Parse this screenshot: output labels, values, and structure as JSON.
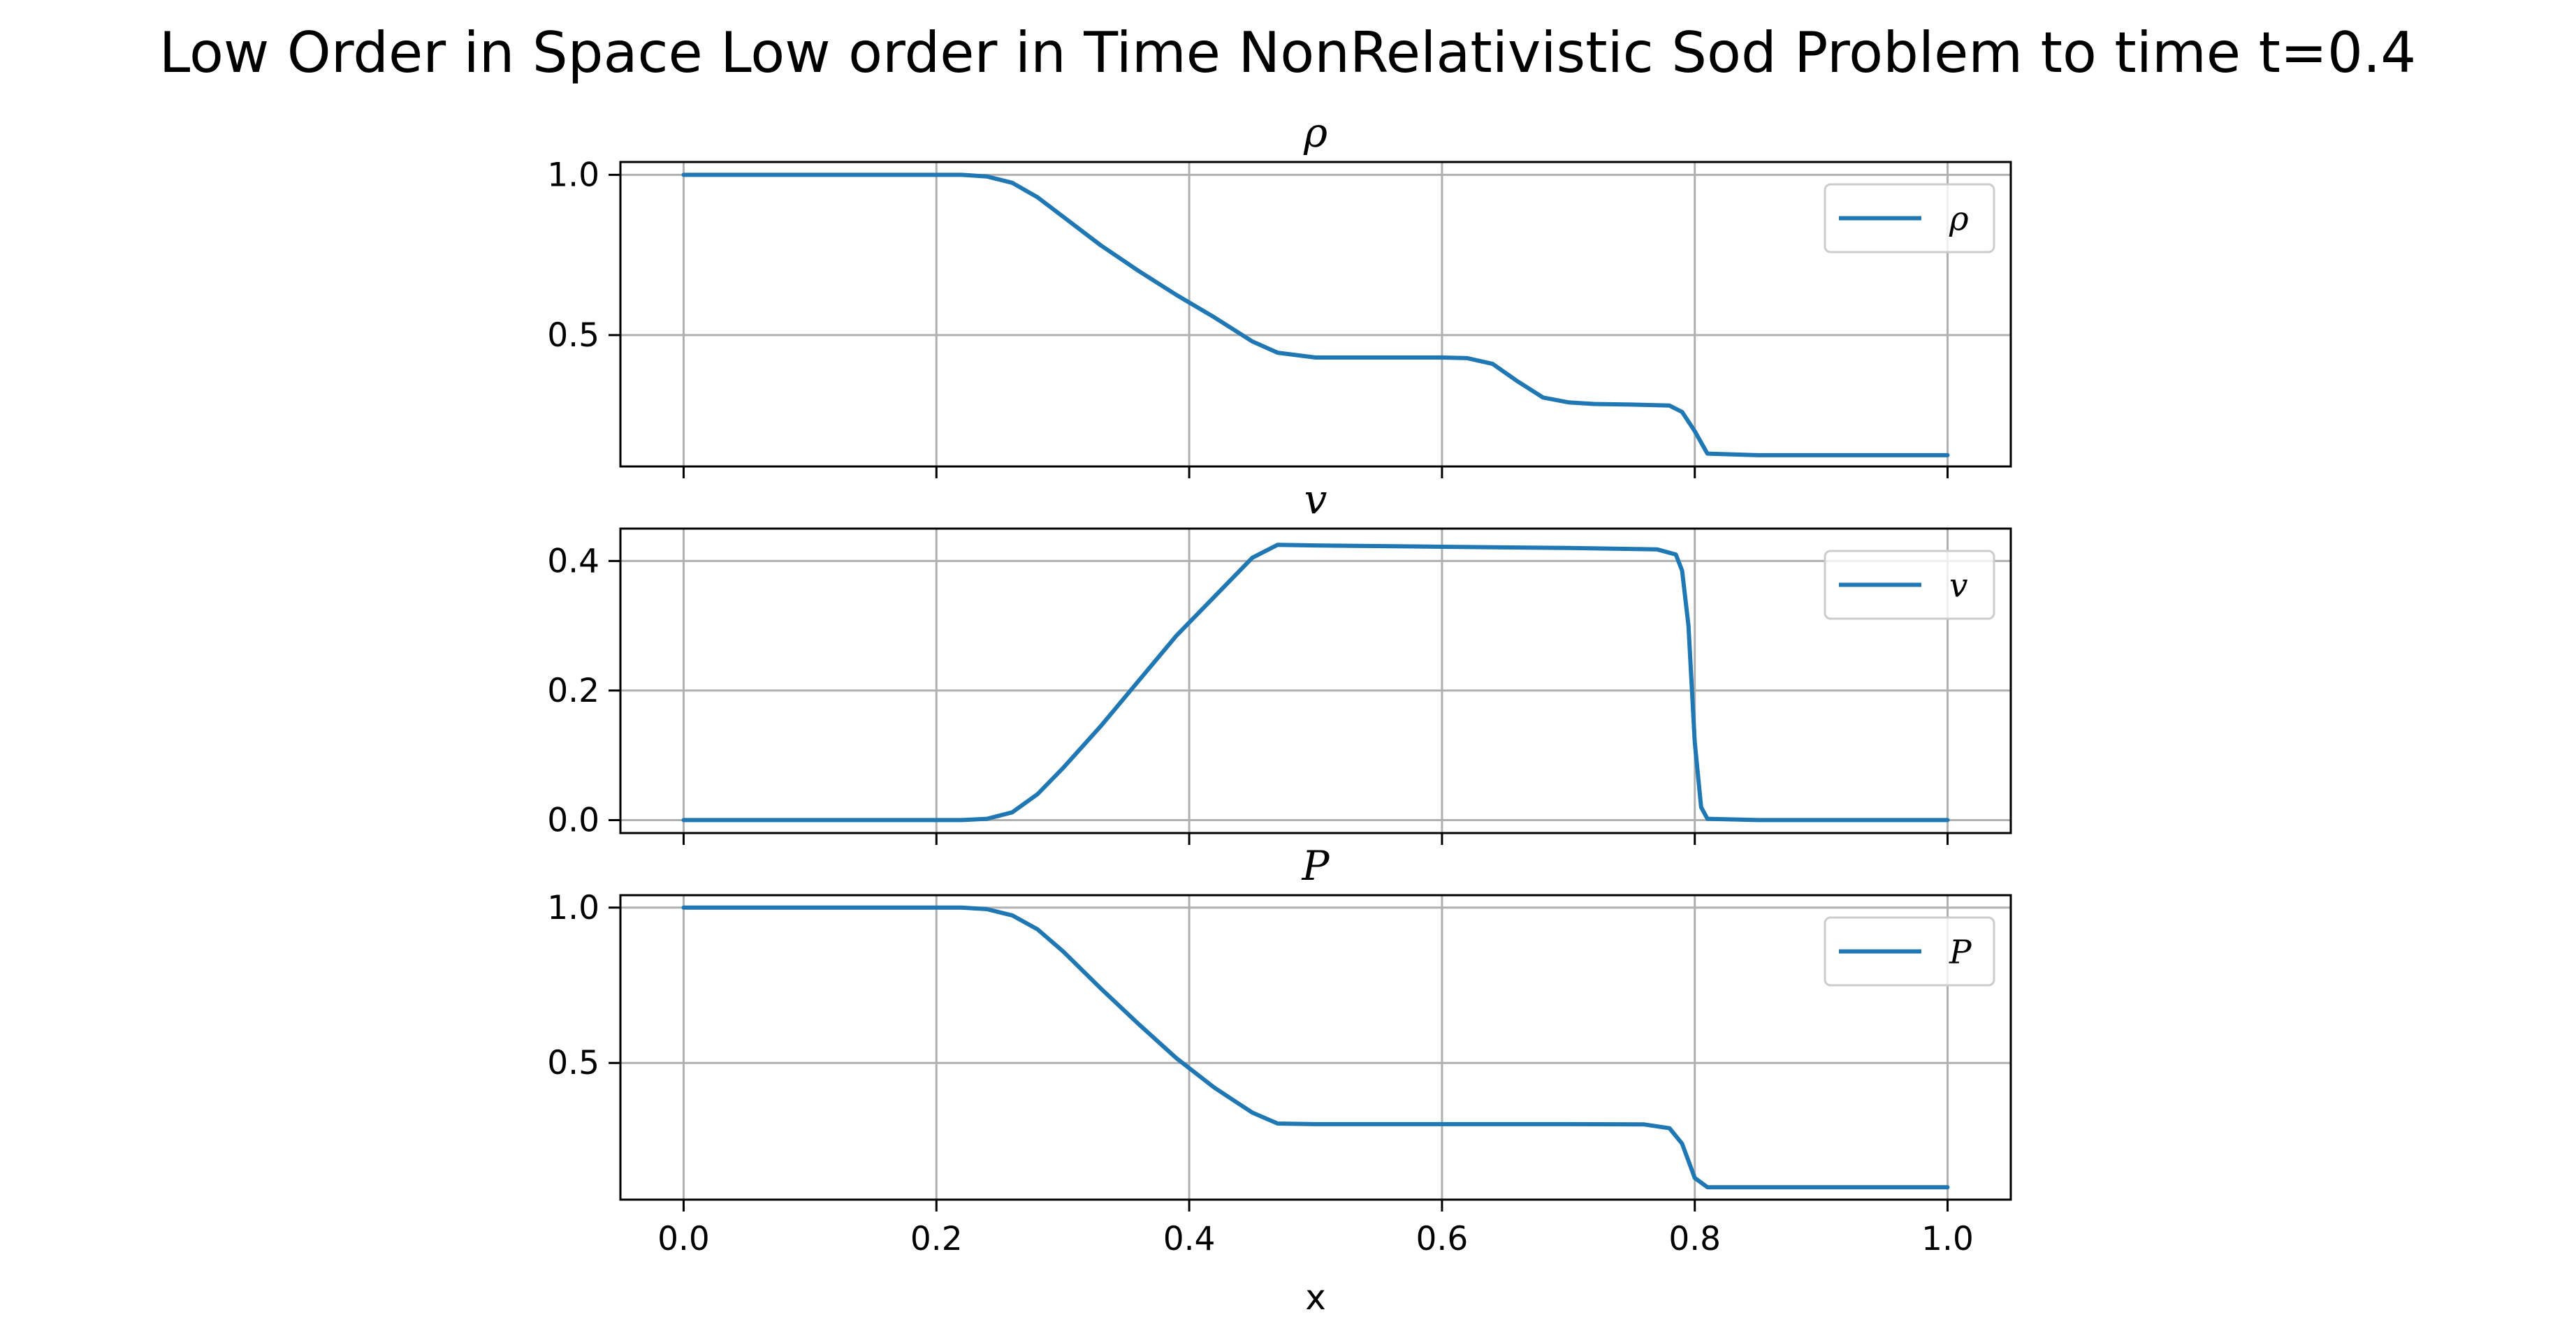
{
  "chart_data": {
    "type": "line",
    "title": "Low Order in Space Low order in Time NonRelativistic Sod Problem to time t=0.4",
    "xlabel": "x",
    "xlim": [
      -0.05,
      1.05
    ],
    "x_ticks": [
      "0.0",
      "0.2",
      "0.4",
      "0.6",
      "0.8",
      "1.0"
    ],
    "x_tick_values": [
      0.0,
      0.2,
      0.4,
      0.6,
      0.8,
      1.0
    ],
    "grid": true,
    "line_color": "#1f77b4",
    "panels": [
      {
        "title": "ρ",
        "legend": "ρ",
        "legend_loc": "upper right",
        "ylim": [
          0.09,
          1.04
        ],
        "y_ticks": [
          "0.5",
          "1.0"
        ],
        "y_tick_values": [
          0.5,
          1.0
        ],
        "x": [
          0.0,
          0.2,
          0.22,
          0.24,
          0.26,
          0.28,
          0.3,
          0.33,
          0.36,
          0.39,
          0.42,
          0.45,
          0.47,
          0.5,
          0.55,
          0.6,
          0.62,
          0.64,
          0.66,
          0.68,
          0.7,
          0.72,
          0.75,
          0.78,
          0.79,
          0.8,
          0.81,
          0.85,
          0.9,
          1.0
        ],
        "y": [
          1.0,
          1.0,
          1.0,
          0.995,
          0.975,
          0.93,
          0.87,
          0.78,
          0.7,
          0.625,
          0.555,
          0.48,
          0.445,
          0.43,
          0.43,
          0.43,
          0.428,
          0.41,
          0.355,
          0.305,
          0.29,
          0.285,
          0.283,
          0.28,
          0.26,
          0.2,
          0.13,
          0.125,
          0.125,
          0.125
        ]
      },
      {
        "title": "v",
        "legend": "v",
        "legend_loc": "upper right",
        "ylim": [
          -0.02,
          0.45
        ],
        "y_ticks": [
          "0.0",
          "0.2",
          "0.4"
        ],
        "y_tick_values": [
          0.0,
          0.2,
          0.4
        ],
        "x": [
          0.0,
          0.22,
          0.24,
          0.26,
          0.28,
          0.3,
          0.33,
          0.36,
          0.39,
          0.42,
          0.45,
          0.47,
          0.5,
          0.6,
          0.7,
          0.77,
          0.785,
          0.79,
          0.795,
          0.8,
          0.805,
          0.81,
          0.85,
          1.0
        ],
        "y": [
          0.0,
          0.0,
          0.002,
          0.012,
          0.04,
          0.08,
          0.145,
          0.215,
          0.285,
          0.345,
          0.405,
          0.425,
          0.424,
          0.422,
          0.42,
          0.418,
          0.41,
          0.385,
          0.3,
          0.12,
          0.02,
          0.002,
          0.0,
          0.0
        ]
      },
      {
        "title": "P",
        "legend": "P",
        "legend_loc": "upper right",
        "ylim": [
          0.06,
          1.04
        ],
        "y_ticks": [
          "0.5",
          "1.0"
        ],
        "y_tick_values": [
          0.5,
          1.0
        ],
        "x": [
          0.0,
          0.2,
          0.22,
          0.24,
          0.26,
          0.28,
          0.3,
          0.33,
          0.36,
          0.39,
          0.42,
          0.45,
          0.47,
          0.5,
          0.6,
          0.7,
          0.76,
          0.78,
          0.79,
          0.8,
          0.81,
          0.85,
          1.0
        ],
        "y": [
          1.0,
          1.0,
          1.0,
          0.995,
          0.975,
          0.93,
          0.86,
          0.74,
          0.625,
          0.515,
          0.42,
          0.34,
          0.305,
          0.303,
          0.303,
          0.303,
          0.302,
          0.29,
          0.24,
          0.13,
          0.1,
          0.1,
          0.1
        ]
      }
    ]
  }
}
